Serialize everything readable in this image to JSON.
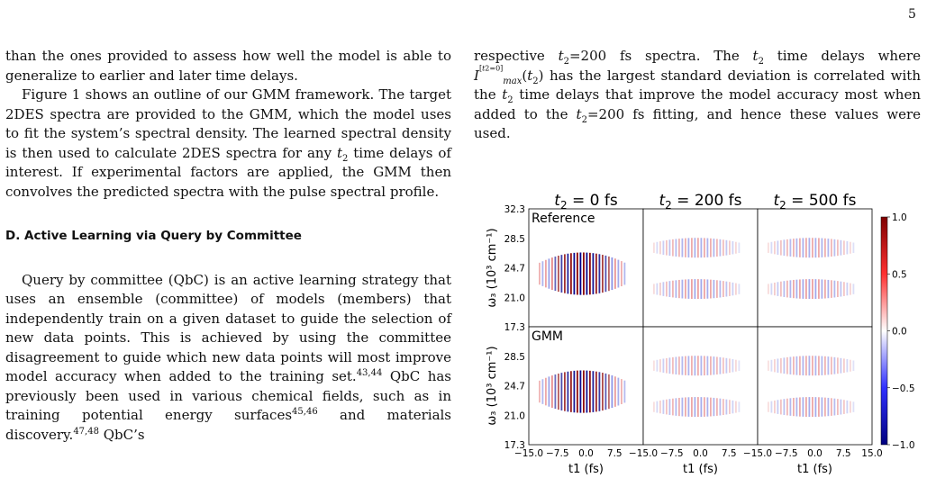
{
  "page_number": "5",
  "left_column": {
    "p1": "than the ones provided to assess how well the model is able to generalize to earlier and later time delays.",
    "p2_a": "Figure 1 shows an outline of our GMM framework. The target 2DES spectra are provided to the GMM, which the model uses to fit the system’s spectral density. The learned spectral density is then used to calculate 2DES spectra for any ",
    "p2_b": " time delays of interest. If experimental factors are applied, the GMM then convolves the predicted spectra with the pulse spectral profile.",
    "heading": "D.   Active Learning via Query by Committee",
    "p3_a": "Query by committee (QbC) is an active learning strategy that uses an ensemble (committee) of models (members) that independently train on a given dataset to guide the selection of new data points. This is achieved by using the committee disagreement to guide which new data points will most improve model accuracy when added to the training set.",
    "p3_ref1": "43,44",
    "p3_b": " QbC has previously been used in various chemical fields, such as in training potential energy surfaces",
    "p3_ref2": "45,46",
    "p3_c": " and materials discovery.",
    "p3_ref3": "47,48",
    "p3_d": " QbC’s"
  },
  "right_column": {
    "p1_a": "respective ",
    "p1_b": "=200 fs spectra. The ",
    "p1_c": " time delays where ",
    "p1_d": " has the largest standard deviation is correlated with the ",
    "p1_e": " time delays that improve the model accuracy most when added to the ",
    "p1_f": "=200 fs fitting, and hence these values were used."
  },
  "figure": {
    "columns": [
      "t2 = 0 fs",
      "t2 = 200 fs",
      "t2 = 500 fs"
    ],
    "row_labels": [
      "Reference",
      "GMM"
    ],
    "y_axis_label": "ω3 (10^3 cm^-1)",
    "y_ticks": [
      "32.3",
      "28.5",
      "24.7",
      "21.0",
      "17.3"
    ],
    "x_axis_label": "t1 (fs)",
    "x_ticks": [
      "−15.0",
      "−7.5",
      "0.0",
      "7.5",
      "15.0"
    ],
    "colorbar_ticks": [
      "1.0",
      "0.5",
      "0.0",
      "−0.5",
      "−1.0"
    ],
    "colors": {
      "positive": "#8b0000",
      "negative": "#00008b",
      "zero": "#ffffff"
    }
  }
}
